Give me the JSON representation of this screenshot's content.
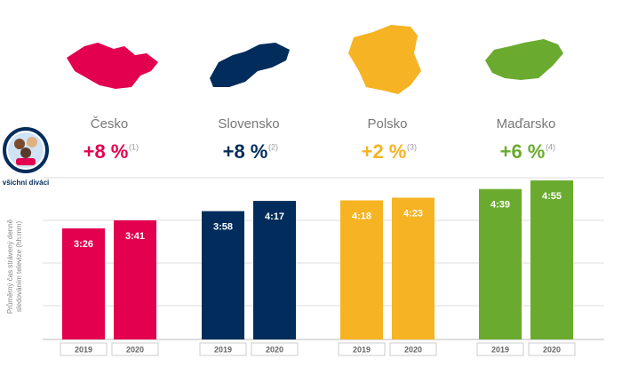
{
  "chart_data": {
    "type": "bar",
    "categories": [
      "Česko",
      "Slovensko",
      "Polsko",
      "Maďarsko"
    ],
    "colors": [
      "#e2004f",
      "#012c5c",
      "#f6b323",
      "#6aab2f"
    ],
    "changes": [
      "+8 %",
      "+8 %",
      "+2 %",
      "+6 %"
    ],
    "notes": [
      "(1)",
      "(2)",
      "(3)",
      "(4)"
    ],
    "audience_label": "všichni diváci",
    "y_label": [
      "Průměrný čas strávený denně",
      "sledováním televize (hh:mm)"
    ],
    "series": [
      {
        "name": "2019",
        "values": [
          206,
          238,
          258,
          279
        ],
        "value_labels": [
          "3:26",
          "3:58",
          "4:18",
          "4:39"
        ]
      },
      {
        "name": "2020",
        "values": [
          221,
          257,
          263,
          295
        ],
        "value_labels": [
          "3:41",
          "4:17",
          "4:23",
          "4:55"
        ]
      }
    ],
    "ylim": [
      0,
      300
    ]
  }
}
